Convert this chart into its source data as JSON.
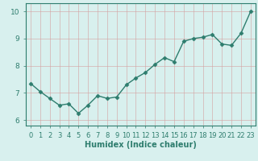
{
  "x": [
    0,
    1,
    2,
    3,
    4,
    5,
    6,
    7,
    8,
    9,
    10,
    11,
    12,
    13,
    14,
    15,
    16,
    17,
    18,
    19,
    20,
    21,
    22,
    23
  ],
  "y": [
    7.35,
    7.05,
    6.8,
    6.55,
    6.6,
    6.25,
    6.55,
    6.9,
    6.8,
    6.85,
    7.3,
    7.55,
    7.75,
    8.05,
    8.3,
    8.15,
    8.9,
    9.0,
    9.05,
    9.15,
    8.8,
    8.75,
    9.2,
    10.0
  ],
  "xlabel": "Humidex (Indice chaleur)",
  "xlim": [
    -0.5,
    23.5
  ],
  "ylim": [
    5.8,
    10.3
  ],
  "yticks": [
    6,
    7,
    8,
    9,
    10
  ],
  "xticks": [
    0,
    1,
    2,
    3,
    4,
    5,
    6,
    7,
    8,
    9,
    10,
    11,
    12,
    13,
    14,
    15,
    16,
    17,
    18,
    19,
    20,
    21,
    22,
    23
  ],
  "line_color": "#2e7d6e",
  "bg_color": "#d8f0ee",
  "grid_color_major": "#c8dedd",
  "grid_color_minor": "#dce8e7",
  "marker_size": 2.5,
  "line_width": 1.0,
  "xlabel_fontsize": 7.0,
  "tick_fontsize": 6.0
}
